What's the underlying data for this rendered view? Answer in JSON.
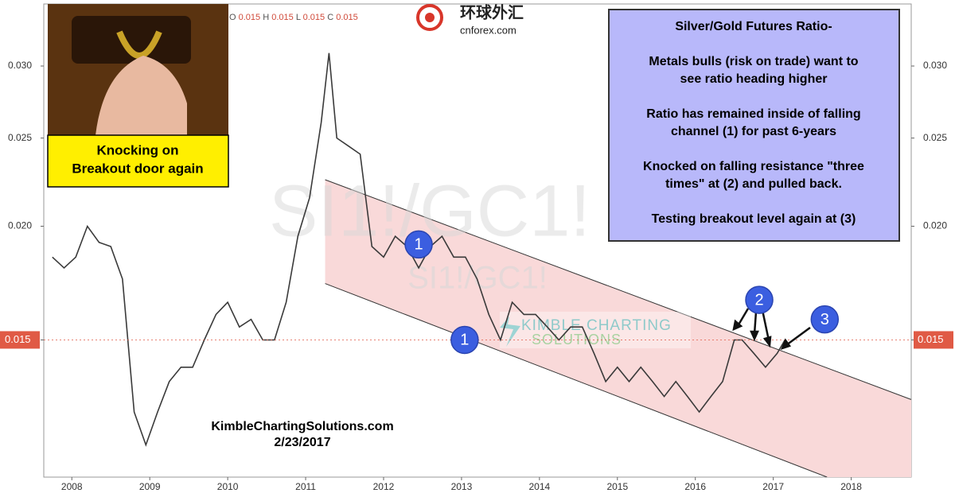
{
  "chart_data": {
    "type": "line",
    "watermark": "SI1!/GC1!",
    "x": [
      2007.75,
      2007.9,
      2008.05,
      2008.2,
      2008.35,
      2008.5,
      2008.65,
      2008.8,
      2008.95,
      2009.1,
      2009.25,
      2009.4,
      2009.55,
      2009.7,
      2009.85,
      2010.0,
      2010.15,
      2010.3,
      2010.45,
      2010.6,
      2010.75,
      2010.9,
      2011.05,
      2011.2,
      2011.3,
      2011.4,
      2011.55,
      2011.7,
      2011.85,
      2012.0,
      2012.15,
      2012.3,
      2012.45,
      2012.6,
      2012.75,
      2012.9,
      2013.05,
      2013.2,
      2013.35,
      2013.5,
      2013.65,
      2013.8,
      2013.95,
      2014.1,
      2014.25,
      2014.4,
      2014.55,
      2014.7,
      2014.85,
      2015.0,
      2015.15,
      2015.3,
      2015.45,
      2015.6,
      2015.75,
      2015.9,
      2016.05,
      2016.2,
      2016.35,
      2016.5,
      2016.6,
      2016.75,
      2016.9,
      2017.05,
      2017.15
    ],
    "values": [
      0.0185,
      0.018,
      0.0185,
      0.02,
      0.0192,
      0.019,
      0.0175,
      0.0125,
      0.0115,
      0.0125,
      0.0135,
      0.014,
      0.014,
      0.015,
      0.016,
      0.0165,
      0.0155,
      0.0158,
      0.015,
      0.015,
      0.0165,
      0.0195,
      0.0215,
      0.026,
      0.031,
      0.025,
      0.0245,
      0.024,
      0.019,
      0.0185,
      0.0195,
      0.019,
      0.018,
      0.019,
      0.0195,
      0.0185,
      0.0185,
      0.0175,
      0.016,
      0.015,
      0.0165,
      0.016,
      0.016,
      0.0155,
      0.015,
      0.0155,
      0.0155,
      0.0145,
      0.0135,
      0.014,
      0.0135,
      0.014,
      0.0135,
      0.013,
      0.0135,
      0.013,
      0.0125,
      0.013,
      0.0135,
      0.015,
      0.015,
      0.0145,
      0.014,
      0.0145,
      0.015
    ],
    "color": "#3a3a3a",
    "log_scale": true,
    "xlim": [
      2007.64,
      2018.77
    ],
    "xticks": [
      2008,
      2009,
      2010,
      2011,
      2012,
      2013,
      2014,
      2015,
      2016,
      2017,
      2018
    ],
    "ylim": [
      0.0106,
      0.0351
    ],
    "yticks": [
      0.015,
      {
        "value": 0.02,
        "label": "0.020"
      },
      0.025,
      {
        "value": 0.03,
        "label": "0.030"
      }
    ],
    "last_price": 0.015,
    "last_price_color": "#e05a45",
    "readout": [
      {
        "key": "O",
        "value": 0.015
      },
      {
        "key": "H",
        "value": 0.015
      },
      {
        "key": "L",
        "value": 0.015
      },
      {
        "key": "C",
        "value": 0.015
      }
    ],
    "channel": {
      "color": "#f9d9d9",
      "upper": [
        [
          2011.25,
          0.0225
        ],
        [
          2018.77,
          0.0129
        ]
      ],
      "lower": [
        [
          2011.25,
          0.0173
        ],
        [
          2017.69,
          0.0106
        ]
      ]
    },
    "markers": [
      {
        "label": "1",
        "x": 2012.45,
        "y": 0.0191
      },
      {
        "label": "1",
        "x": 2013.04,
        "y": 0.015
      },
      {
        "label": "2",
        "x": 2016.82,
        "y": 0.0166
      },
      {
        "label": "3",
        "x": 2017.66,
        "y": 0.0158
      }
    ],
    "text_box": {
      "title": "Silver/Gold Futures Ratio-",
      "paragraphs": [
        [
          "Metals bulls (risk on trade) want to",
          "see ratio heading higher"
        ],
        [
          "Ratio has remained inside of falling",
          "channel (1) for past 6-years"
        ],
        [
          "Knocked on falling resistance \"three",
          "times\" at (2) and pulled back."
        ],
        [
          "Testing breakout level again at (3)"
        ]
      ]
    },
    "inset_caption": [
      "Knocking on",
      "Breakout door again"
    ],
    "logo_cn": "环球外汇",
    "logo_site": "cnforex.com",
    "logo_kimble": [
      "KIMBLE CHARTING",
      "SOLUTIONS"
    ],
    "source": "KimbleChartingSolutions.com",
    "date": "2/23/2017"
  }
}
